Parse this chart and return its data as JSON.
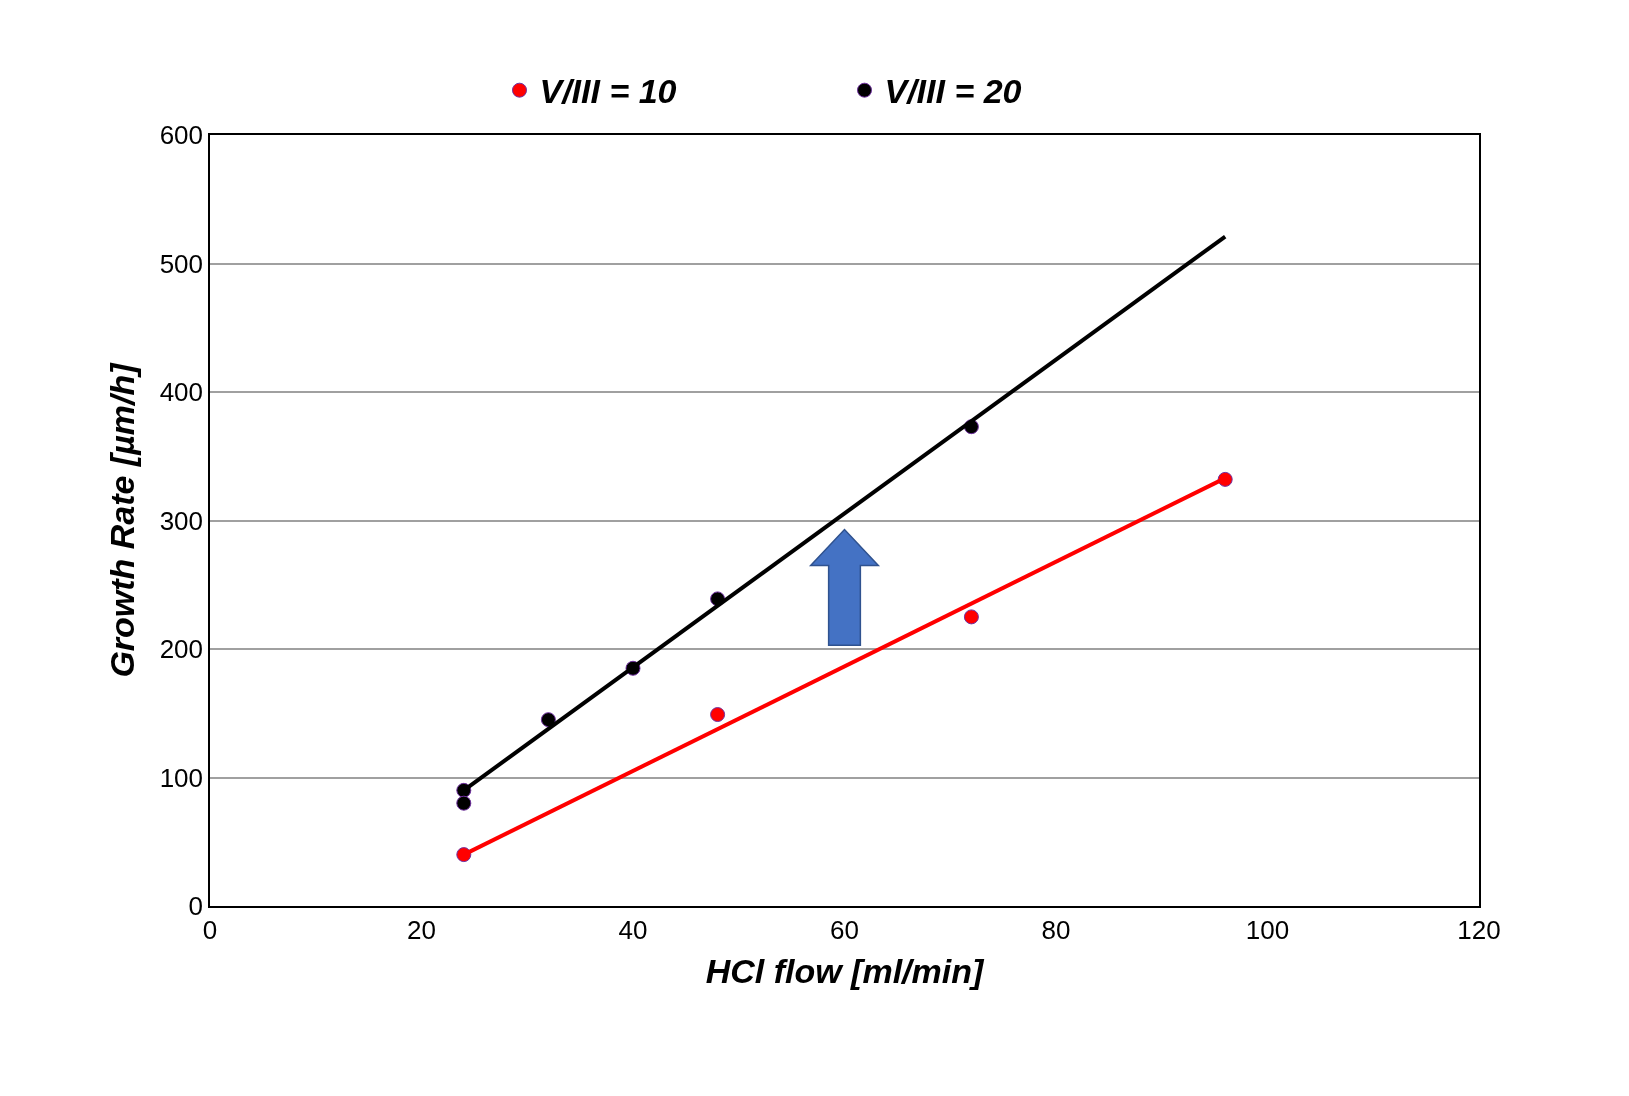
{
  "chart_data": {
    "type": "scatter",
    "xlabel": "HCl flow [ml/min]",
    "ylabel": "Growth Rate [µm/h]",
    "series": [
      {
        "name": "V/III = 10",
        "color": "#ff0000",
        "x": [
          24,
          48,
          72,
          96
        ],
        "values": [
          40,
          149,
          225,
          332
        ]
      },
      {
        "name": "V/III = 20",
        "color": "#000000",
        "x": [
          24,
          24,
          32,
          40,
          48,
          72
        ],
        "values": [
          90,
          80,
          145,
          185,
          239,
          373
        ]
      },
      {
        "type": "line",
        "color": "#ff0000",
        "marker": "none",
        "x": [
          24,
          96
        ],
        "values": [
          40,
          333
        ]
      },
      {
        "type": "line",
        "color": "#000000",
        "marker": "none",
        "x": [
          24,
          96
        ],
        "values": [
          90,
          521
        ]
      }
    ],
    "xlim": [
      0,
      120
    ],
    "xticks": [
      0,
      20,
      40,
      60,
      80,
      100,
      120
    ],
    "ylim": [
      0,
      600
    ],
    "yticks": [
      0,
      100,
      200,
      300,
      400,
      500,
      600
    ],
    "grid": "y",
    "legend": "top",
    "marker": "circle",
    "line_style": "solid"
  }
}
